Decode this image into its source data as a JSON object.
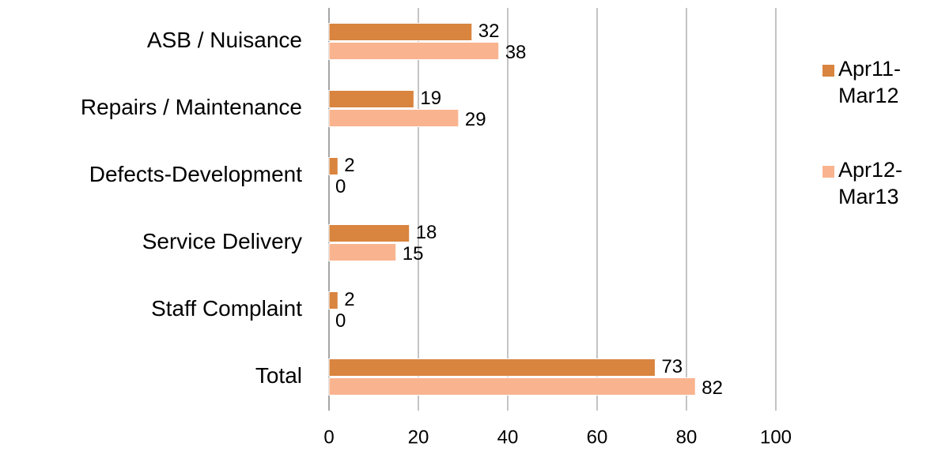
{
  "chart_data": {
    "type": "barh",
    "categories": [
      "ASB / Nuisance",
      "Repairs / Maintenance",
      "Defects-Development",
      "Service Delivery",
      "Staff Complaint",
      "Total"
    ],
    "series": [
      {
        "name": "Apr11-Mar12",
        "color": "#d9843f",
        "values": [
          32,
          19,
          2,
          18,
          2,
          73
        ]
      },
      {
        "name": "Apr12-Mar13",
        "color": "#f9b48f",
        "values": [
          38,
          29,
          0,
          15,
          0,
          82
        ]
      }
    ],
    "xlim": [
      0,
      100
    ],
    "xticks": [
      0,
      20,
      40,
      60,
      80,
      100
    ],
    "grid": true,
    "legend": "right"
  }
}
